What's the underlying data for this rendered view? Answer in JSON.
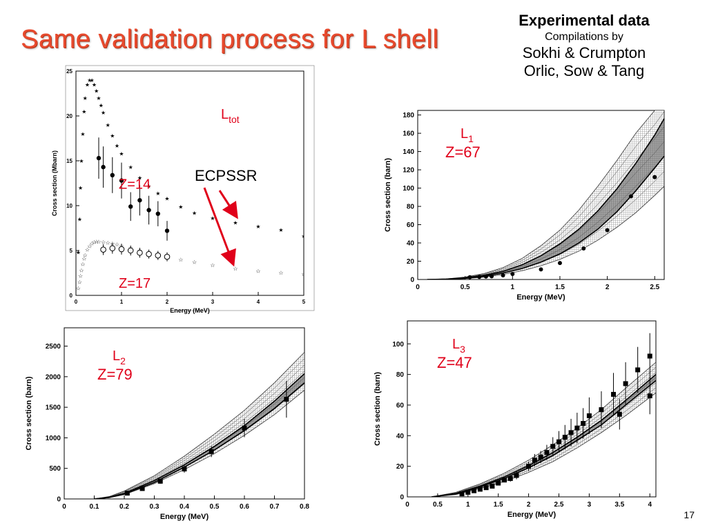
{
  "slide": {
    "title": "Same validation process for L shell",
    "page_number": "17"
  },
  "experimental": {
    "title": "Experimental data",
    "subtitle": "Compilations by",
    "lines": [
      "Sokhi & Crumpton",
      "Orlic, Sow & Tang"
    ]
  },
  "colors": {
    "title": "#e84a2e",
    "annotation": "#e0001a",
    "arrow": "#e0001a"
  },
  "chart_data": [
    {
      "type": "scatter",
      "panel": "Ltot",
      "label_main": "L",
      "label_sub": "tot",
      "xlabel": "Energy (MeV)",
      "ylabel": "Cross section (Mbarn)",
      "xlim": [
        0,
        5
      ],
      "ylim": [
        0,
        25
      ],
      "xticks": [
        0,
        1,
        2,
        3,
        4,
        5
      ],
      "yticks": [
        0,
        5,
        10,
        15,
        20,
        25
      ],
      "annotations": [
        {
          "text": "Z=14",
          "x": 1.0,
          "y": 12.5
        },
        {
          "text": "ECPSSR",
          "x": 3.2,
          "y": 13.2
        },
        {
          "text": "Z=17",
          "x": 1.45,
          "y": 0.7
        }
      ],
      "arrows": [
        {
          "from": [
            2.9,
            12.6
          ],
          "to": [
            3.45,
            9.3
          ]
        },
        {
          "from": [
            2.85,
            12.5
          ],
          "to": [
            3.45,
            2.7
          ]
        }
      ],
      "series": [
        {
          "marker": "star-filled",
          "x": [
            0.05,
            0.08,
            0.1,
            0.12,
            0.15,
            0.18,
            0.2,
            0.25,
            0.3,
            0.35,
            0.4,
            0.45,
            0.5,
            0.55,
            0.6,
            0.7,
            0.8,
            0.9,
            1.0,
            1.2,
            1.4,
            1.6,
            1.8,
            2.0,
            2.3,
            2.6,
            3.0,
            3.5,
            4.0,
            4.5,
            5.0
          ],
          "y": [
            4.8,
            8.5,
            12,
            15,
            18,
            20.5,
            22,
            23.5,
            24,
            24,
            23.5,
            22.8,
            22,
            21.2,
            20.4,
            19,
            17.8,
            16.7,
            15.8,
            14.3,
            13.1,
            12.2,
            11.4,
            10.8,
            9.9,
            9.2,
            8.6,
            8.1,
            7.7,
            7.3,
            6.6
          ]
        },
        {
          "marker": "circle-filled",
          "x": [
            0.5,
            0.6,
            0.8,
            1.0,
            1.2,
            1.4,
            1.6,
            1.8,
            2.0
          ],
          "y": [
            15.3,
            14.3,
            13.4,
            12.8,
            9.9,
            10.6,
            9.5,
            9.1,
            7.2
          ],
          "yerr": [
            2.3,
            2.3,
            2.0,
            2.0,
            1.6,
            1.7,
            1.6,
            1.4,
            1.1
          ]
        },
        {
          "marker": "star-open",
          "x": [
            0.05,
            0.08,
            0.1,
            0.12,
            0.15,
            0.18,
            0.2,
            0.25,
            0.3,
            0.35,
            0.4,
            0.45,
            0.5,
            0.6,
            0.7,
            0.8,
            0.9,
            1.0,
            1.2,
            1.4,
            1.6,
            1.8,
            2.0,
            2.3,
            2.6,
            3.0,
            3.5,
            4.0,
            4.5,
            5.0
          ],
          "y": [
            0.8,
            1.5,
            2.2,
            2.8,
            3.5,
            4.1,
            4.5,
            5.1,
            5.5,
            5.8,
            5.95,
            6.0,
            6.0,
            5.95,
            5.9,
            5.8,
            5.7,
            5.55,
            5.3,
            5.05,
            4.8,
            4.55,
            4.35,
            4.0,
            3.75,
            3.4,
            3.0,
            2.75,
            2.55,
            2.4
          ]
        },
        {
          "marker": "circle-open",
          "x": [
            0.6,
            0.8,
            1.0,
            1.2,
            1.4,
            1.6,
            1.8,
            2.0
          ],
          "y": [
            5.1,
            5.25,
            5.15,
            5.0,
            4.75,
            4.6,
            4.45,
            4.3
          ],
          "yerr": [
            0.6,
            0.6,
            0.6,
            0.55,
            0.55,
            0.5,
            0.5,
            0.5
          ]
        }
      ]
    },
    {
      "type": "line",
      "panel": "L1",
      "label_main": "L",
      "label_sub": "1",
      "label_z": "Z=67",
      "xlabel": "Energy (MeV)",
      "ylabel": "Cross section (barn)",
      "xlim": [
        0,
        2.6
      ],
      "ylim": [
        0,
        185
      ],
      "xticks": [
        0,
        0.5,
        1,
        1.5,
        2,
        2.5
      ],
      "yticks": [
        0,
        20,
        40,
        60,
        80,
        100,
        120,
        140,
        160,
        180
      ],
      "curves": [
        {
          "x": [
            0.1,
            0.3,
            0.5,
            0.7,
            0.9,
            1.1,
            1.3,
            1.5,
            1.7,
            1.9,
            2.1,
            2.3,
            2.5,
            2.6
          ],
          "y": [
            0,
            0.3,
            1.3,
            3.5,
            7,
            12,
            19,
            28,
            40,
            55,
            74,
            97,
            122,
            135
          ]
        },
        {
          "x": [
            0.1,
            0.3,
            0.5,
            0.7,
            0.9,
            1.1,
            1.3,
            1.5,
            1.7,
            1.9,
            2.1,
            2.3,
            2.5,
            2.6
          ],
          "y": [
            0,
            0.4,
            1.8,
            4.5,
            9,
            16,
            26,
            39,
            55,
            75,
            99,
            127,
            158,
            176
          ]
        }
      ],
      "band": {
        "x": [
          0.1,
          0.3,
          0.5,
          0.7,
          0.9,
          1.1,
          1.3,
          1.5,
          1.7,
          1.9,
          2.1,
          2.3,
          2.5,
          2.6
        ],
        "lower": [
          0,
          0.2,
          1,
          2.5,
          5.5,
          9.5,
          15,
          22,
          31,
          43,
          57,
          73,
          92,
          102
        ],
        "upper": [
          0,
          0.6,
          2.7,
          6.5,
          13,
          23,
          37,
          54,
          76,
          102,
          130,
          160,
          185,
          200
        ]
      },
      "points": {
        "x": [
          0.55,
          0.65,
          0.72,
          0.78,
          0.9,
          1.0,
          1.3,
          1.5,
          1.75,
          2.0,
          2.25,
          2.5
        ],
        "y": [
          2.5,
          2.8,
          3.2,
          3.5,
          4.5,
          6,
          11,
          18,
          34,
          54,
          91,
          112
        ],
        "yerr": [
          0,
          0,
          0,
          0,
          0,
          0,
          0,
          0,
          0,
          0,
          0,
          0
        ]
      }
    },
    {
      "type": "line",
      "panel": "L2",
      "label_main": "L",
      "label_sub": "2",
      "label_z": "Z=79",
      "xlabel": "Energy (MeV)",
      "ylabel": "Cross section (barn)",
      "xlim": [
        0,
        0.8
      ],
      "ylim": [
        0,
        2800
      ],
      "xticks": [
        0,
        0.1,
        0.2,
        0.3,
        0.4,
        0.5,
        0.6,
        0.7,
        0.8
      ],
      "yticks": [
        0,
        500,
        1000,
        1500,
        2000,
        2500
      ],
      "curves": [
        {
          "x": [
            0.1,
            0.15,
            0.2,
            0.3,
            0.4,
            0.5,
            0.6,
            0.7,
            0.8
          ],
          "y": [
            0,
            25,
            80,
            270,
            520,
            800,
            1120,
            1480,
            1900
          ]
        },
        {
          "x": [
            0.1,
            0.15,
            0.2,
            0.3,
            0.4,
            0.5,
            0.6,
            0.7,
            0.8
          ],
          "y": [
            0,
            28,
            90,
            300,
            560,
            860,
            1200,
            1600,
            2050
          ]
        }
      ],
      "band": {
        "x": [
          0.1,
          0.15,
          0.2,
          0.3,
          0.4,
          0.5,
          0.6,
          0.7,
          0.8
        ],
        "lower": [
          0,
          20,
          70,
          250,
          480,
          740,
          1040,
          1380,
          1780
        ],
        "upper": [
          0,
          40,
          130,
          380,
          700,
          1060,
          1450,
          1900,
          2400
        ]
      },
      "points": {
        "x": [
          0.21,
          0.26,
          0.32,
          0.4,
          0.49,
          0.6,
          0.74
        ],
        "y": [
          95,
          170,
          290,
          490,
          775,
          1160,
          1630
        ],
        "yerr": [
          20,
          30,
          40,
          60,
          90,
          150,
          300
        ]
      }
    },
    {
      "type": "line",
      "panel": "L3",
      "label_main": "L",
      "label_sub": "3",
      "label_z": "Z=47",
      "xlabel": "Energy (MeV)",
      "ylabel": "Cross section (barn)",
      "xlim": [
        0,
        4.1
      ],
      "ylim": [
        0,
        115
      ],
      "xticks": [
        0,
        0.5,
        1,
        1.5,
        2,
        2.5,
        3,
        3.5,
        4
      ],
      "yticks": [
        0,
        20,
        40,
        60,
        80,
        100
      ],
      "curves": [
        {
          "x": [
            0.4,
            0.8,
            1.2,
            1.6,
            2.0,
            2.4,
            2.8,
            3.2,
            3.6,
            4.1
          ],
          "y": [
            0,
            2,
            6.5,
            12,
            19,
            27,
            37,
            47,
            60,
            76
          ]
        },
        {
          "x": [
            0.4,
            0.8,
            1.2,
            1.6,
            2.0,
            2.4,
            2.8,
            3.2,
            3.6,
            4.1
          ],
          "y": [
            0,
            2.2,
            7,
            13,
            20.5,
            29,
            39,
            50,
            63,
            80
          ]
        }
      ],
      "band": {
        "x": [
          0.4,
          0.8,
          1.2,
          1.6,
          2.0,
          2.4,
          2.8,
          3.2,
          3.6,
          4.1
        ],
        "lower": [
          0,
          1.5,
          5.5,
          10,
          16,
          23,
          32,
          42,
          53,
          68
        ],
        "upper": [
          0,
          3,
          8.5,
          15.5,
          24,
          34,
          45,
          57,
          71,
          88
        ]
      },
      "points": {
        "x": [
          0.9,
          1.0,
          1.1,
          1.2,
          1.3,
          1.4,
          1.5,
          1.6,
          1.7,
          1.8,
          2.0,
          2.1,
          2.2,
          2.3,
          2.4,
          2.5,
          2.6,
          2.7,
          2.8,
          2.9,
          3.0,
          3.2,
          3.4,
          3.5,
          3.6,
          3.8,
          4.0,
          4.0
        ],
        "y": [
          2,
          3,
          4,
          5,
          6,
          7,
          9,
          11,
          12,
          14,
          20,
          24,
          26,
          29,
          33,
          36,
          39,
          42,
          45,
          48,
          53,
          57,
          67,
          54,
          74,
          83,
          92,
          66
        ],
        "yerr": [
          0.5,
          0.5,
          0.6,
          0.8,
          1,
          1,
          1.2,
          1.5,
          2,
          2.5,
          3,
          4,
          4,
          5,
          6,
          7,
          8,
          9,
          10,
          10,
          12,
          12,
          14,
          10,
          14,
          15,
          15,
          12
        ]
      }
    }
  ]
}
